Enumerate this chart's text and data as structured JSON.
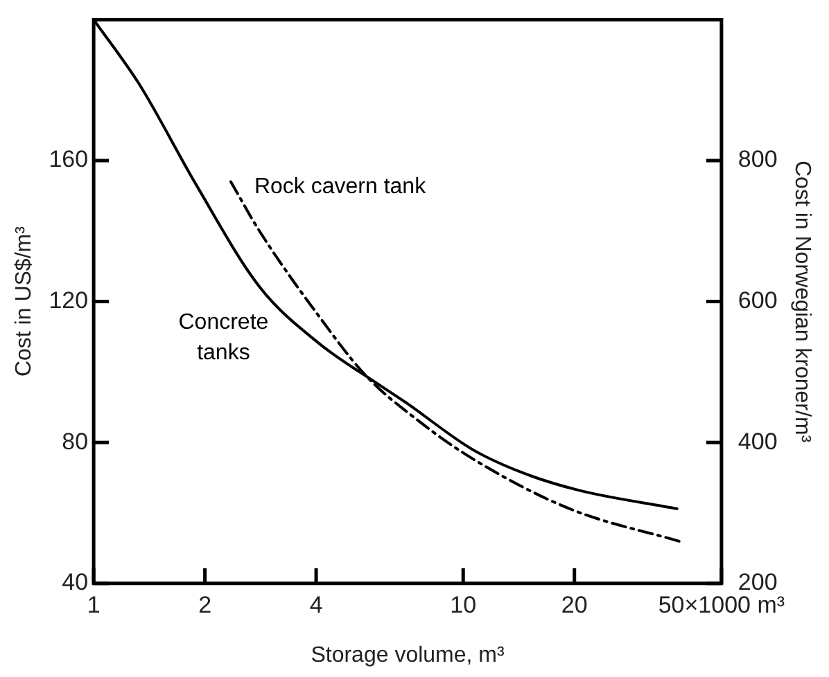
{
  "chart_data": {
    "type": "line",
    "xlabel": "Storage volume, m³",
    "ylabel": "Cost in US$/m³",
    "y2label": "Cost in Norwegian kroner/m³",
    "log": "x",
    "xlim": [
      1,
      50
    ],
    "xticks": [
      1,
      2,
      4,
      10,
      20,
      {
        "value": 50,
        "label": "50×1000 m³"
      }
    ],
    "ylim": [
      40,
      200
    ],
    "yticks": [
      40,
      80,
      120,
      160
    ],
    "y2lim": [
      200,
      1000
    ],
    "y2ticks": [
      200,
      400,
      600,
      800
    ],
    "grid": false,
    "legend": false,
    "marker": "none",
    "series": [
      {
        "name": "Concrete tanks",
        "color": "#000000",
        "line_style": "solid",
        "x": [
          1,
          1.33,
          1.9,
          2.81,
          4.04,
          5.8,
          6.96,
          10.6,
          14.4,
          20.6,
          37.9
        ],
        "values": [
          200,
          181.6,
          152.9,
          124.2,
          108.4,
          97,
          91.5,
          78,
          71.5,
          66.4,
          61.2
        ]
      },
      {
        "name": "Rock cavern tank",
        "color": "#000000",
        "line_style": "dashed",
        "x": [
          2.35,
          2.81,
          4.04,
          5.45,
          7.6,
          10.6,
          19.4,
          38.9
        ],
        "values": [
          154,
          140,
          116.3,
          99,
          86,
          75.4,
          61.2,
          51.8
        ]
      }
    ]
  }
}
